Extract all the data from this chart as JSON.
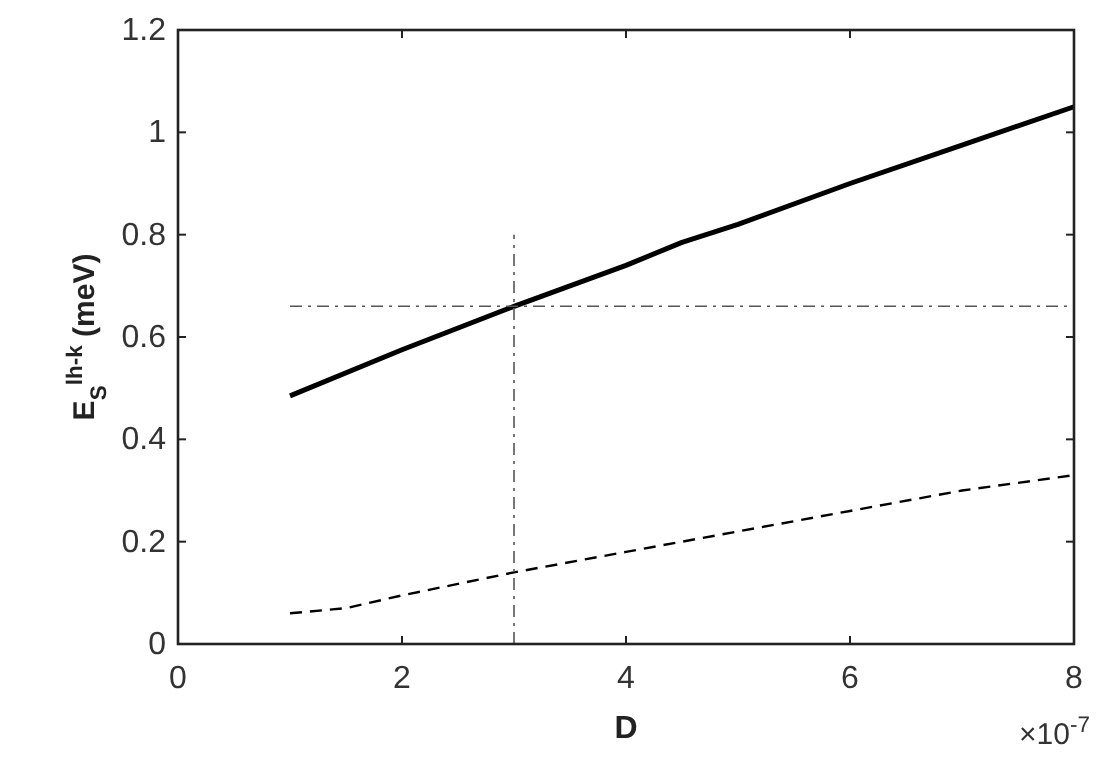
{
  "chart_data": {
    "type": "line",
    "xlabel": "D",
    "ylabel": "E$_{S}$$^{lh-k}$ (meV)",
    "annotations": [
      "×10$^{-7}$"
    ],
    "xlim": [
      0,
      8
    ],
    "xticks": [
      0,
      2,
      4,
      6,
      8
    ],
    "ylim": [
      0,
      1.2
    ],
    "yticks": [
      0,
      0.2,
      0.4,
      0.6,
      0.8,
      1,
      1.2
    ],
    "marker": "none",
    "series": [
      {
        "color": "#000000",
        "line_style": "solid",
        "x": [
          1,
          2,
          3,
          4,
          4.5,
          5,
          6,
          7,
          8
        ],
        "values": [
          0.485,
          0.575,
          0.66,
          0.74,
          0.785,
          0.82,
          0.9,
          0.975,
          1.05
        ]
      },
      {
        "color": "#000000",
        "line_style": "dashed",
        "x": [
          1,
          1.5,
          2,
          3,
          4,
          5,
          6,
          7,
          8
        ],
        "values": [
          0.06,
          0.07,
          0.095,
          0.14,
          0.18,
          0.22,
          0.26,
          0.3,
          0.33
        ]
      },
      {
        "color": "#555555",
        "line_style": "dashdot",
        "x": [
          1,
          8
        ],
        "values": [
          0.66,
          0.66
        ]
      },
      {
        "color": "#555555",
        "line_style": "dashdot",
        "x": [
          3,
          3
        ],
        "values": [
          0,
          0.8
        ]
      }
    ]
  }
}
